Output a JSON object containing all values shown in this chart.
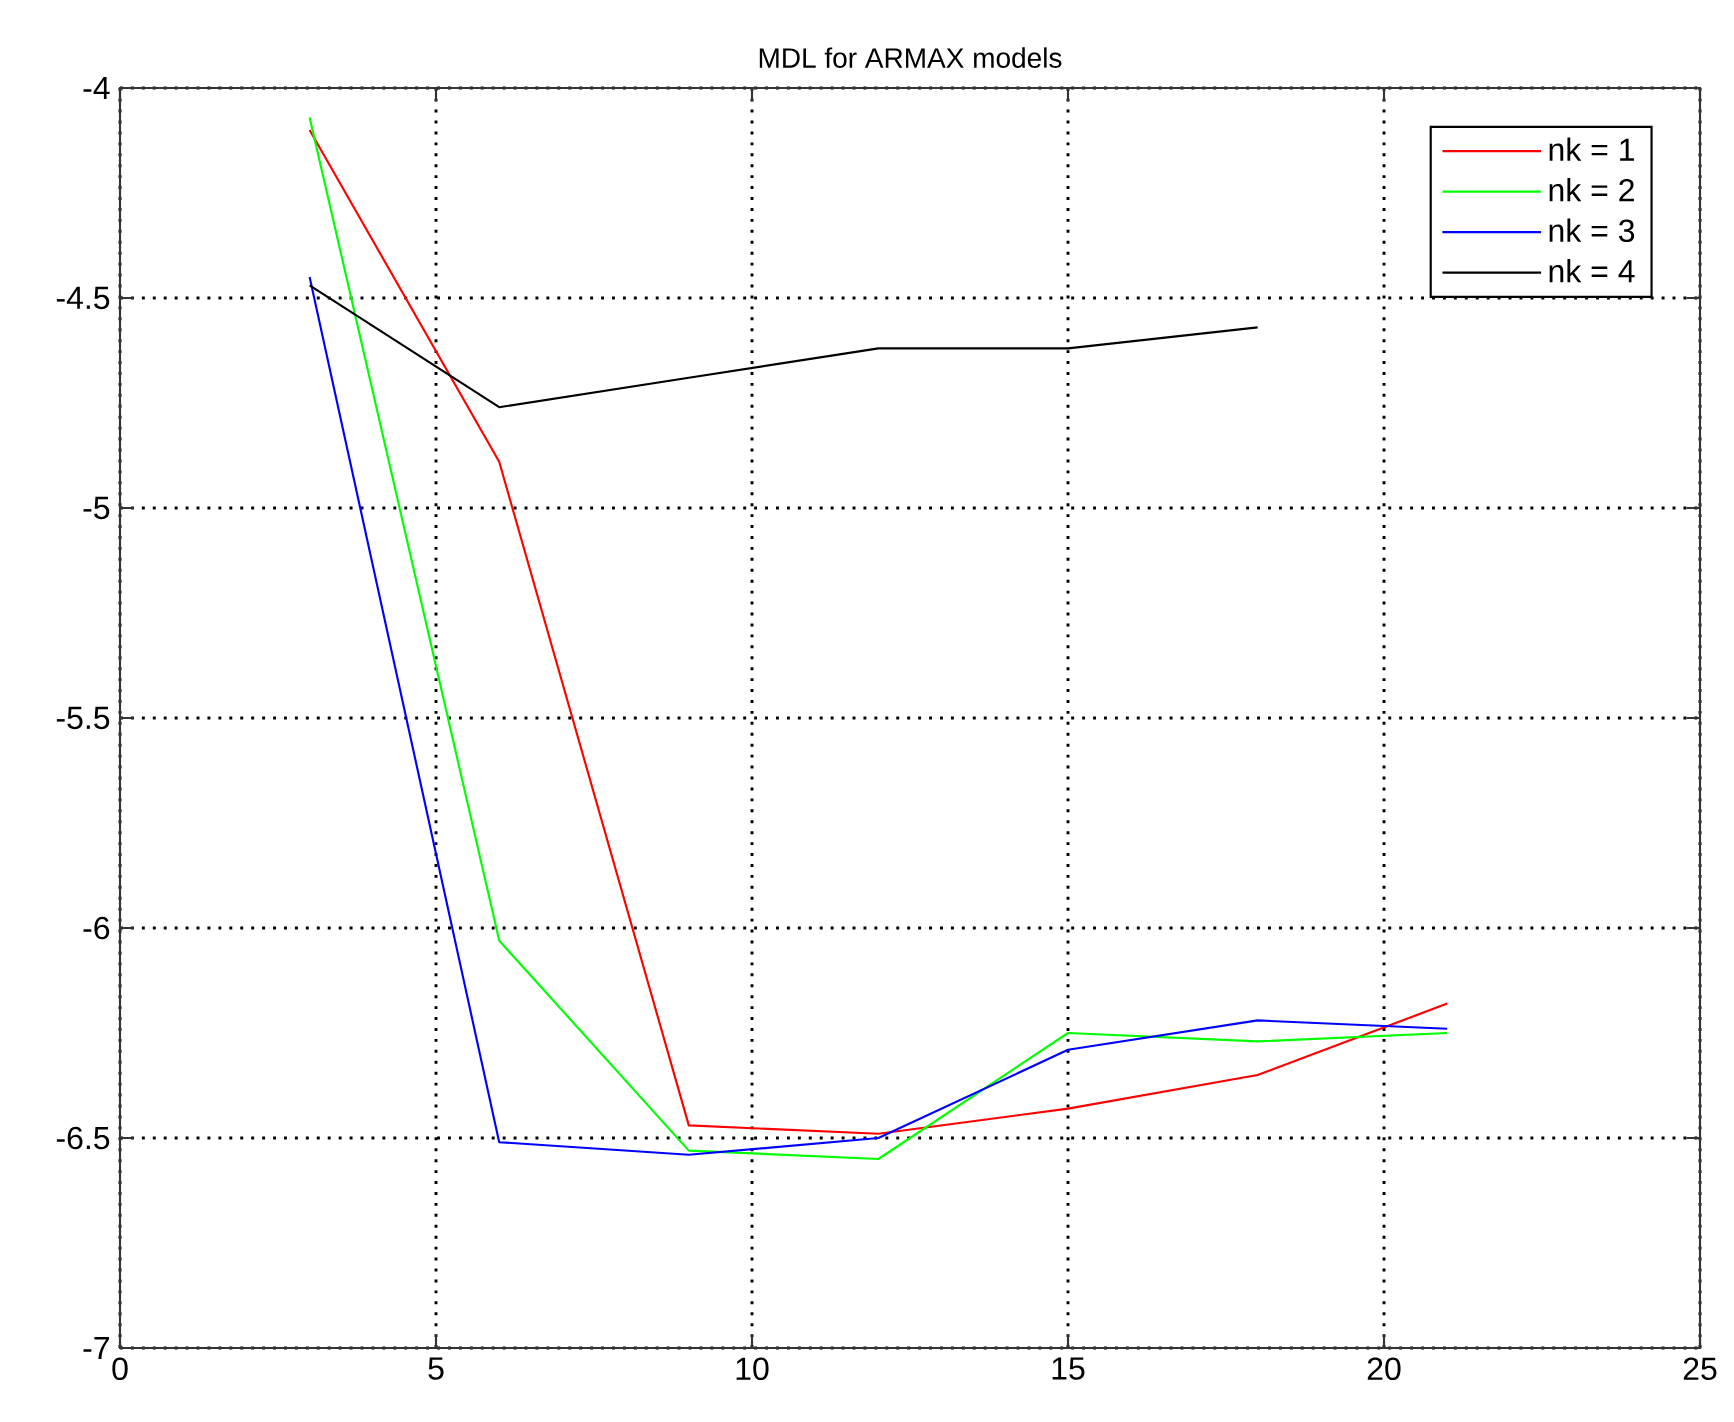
{
  "chart_data": {
    "type": "line",
    "title": "MDL for ARMAX models",
    "x": [
      3,
      6,
      9,
      12,
      15,
      18,
      21
    ],
    "series": [
      {
        "name": "nk = 1",
        "color": "#ff0000",
        "values": [
          -4.1,
          -4.89,
          -6.47,
          -6.49,
          -6.43,
          -6.35,
          -6.18
        ]
      },
      {
        "name": "nk = 2",
        "color": "#00ff00",
        "values": [
          -4.07,
          -6.03,
          -6.53,
          -6.55,
          -6.25,
          -6.27,
          -6.25
        ]
      },
      {
        "name": "nk = 3",
        "color": "#0000ff",
        "values": [
          -4.45,
          -6.51,
          -6.54,
          -6.5,
          -6.29,
          -6.22,
          -6.24
        ]
      },
      {
        "name": "nk = 4",
        "color": "#000000",
        "values": [
          -4.47,
          -4.76,
          -4.69,
          -4.62,
          -4.62,
          -4.57,
          null
        ]
      }
    ],
    "xlim": [
      0,
      25
    ],
    "xticks": [
      0,
      5,
      10,
      15,
      20,
      25
    ],
    "ylim": [
      -7,
      -4
    ],
    "yticks": [
      -7,
      -6.5,
      -6,
      -5.5,
      -5,
      -4.5,
      -4
    ],
    "grid": true,
    "legend": "top right",
    "line_style": "solid"
  }
}
